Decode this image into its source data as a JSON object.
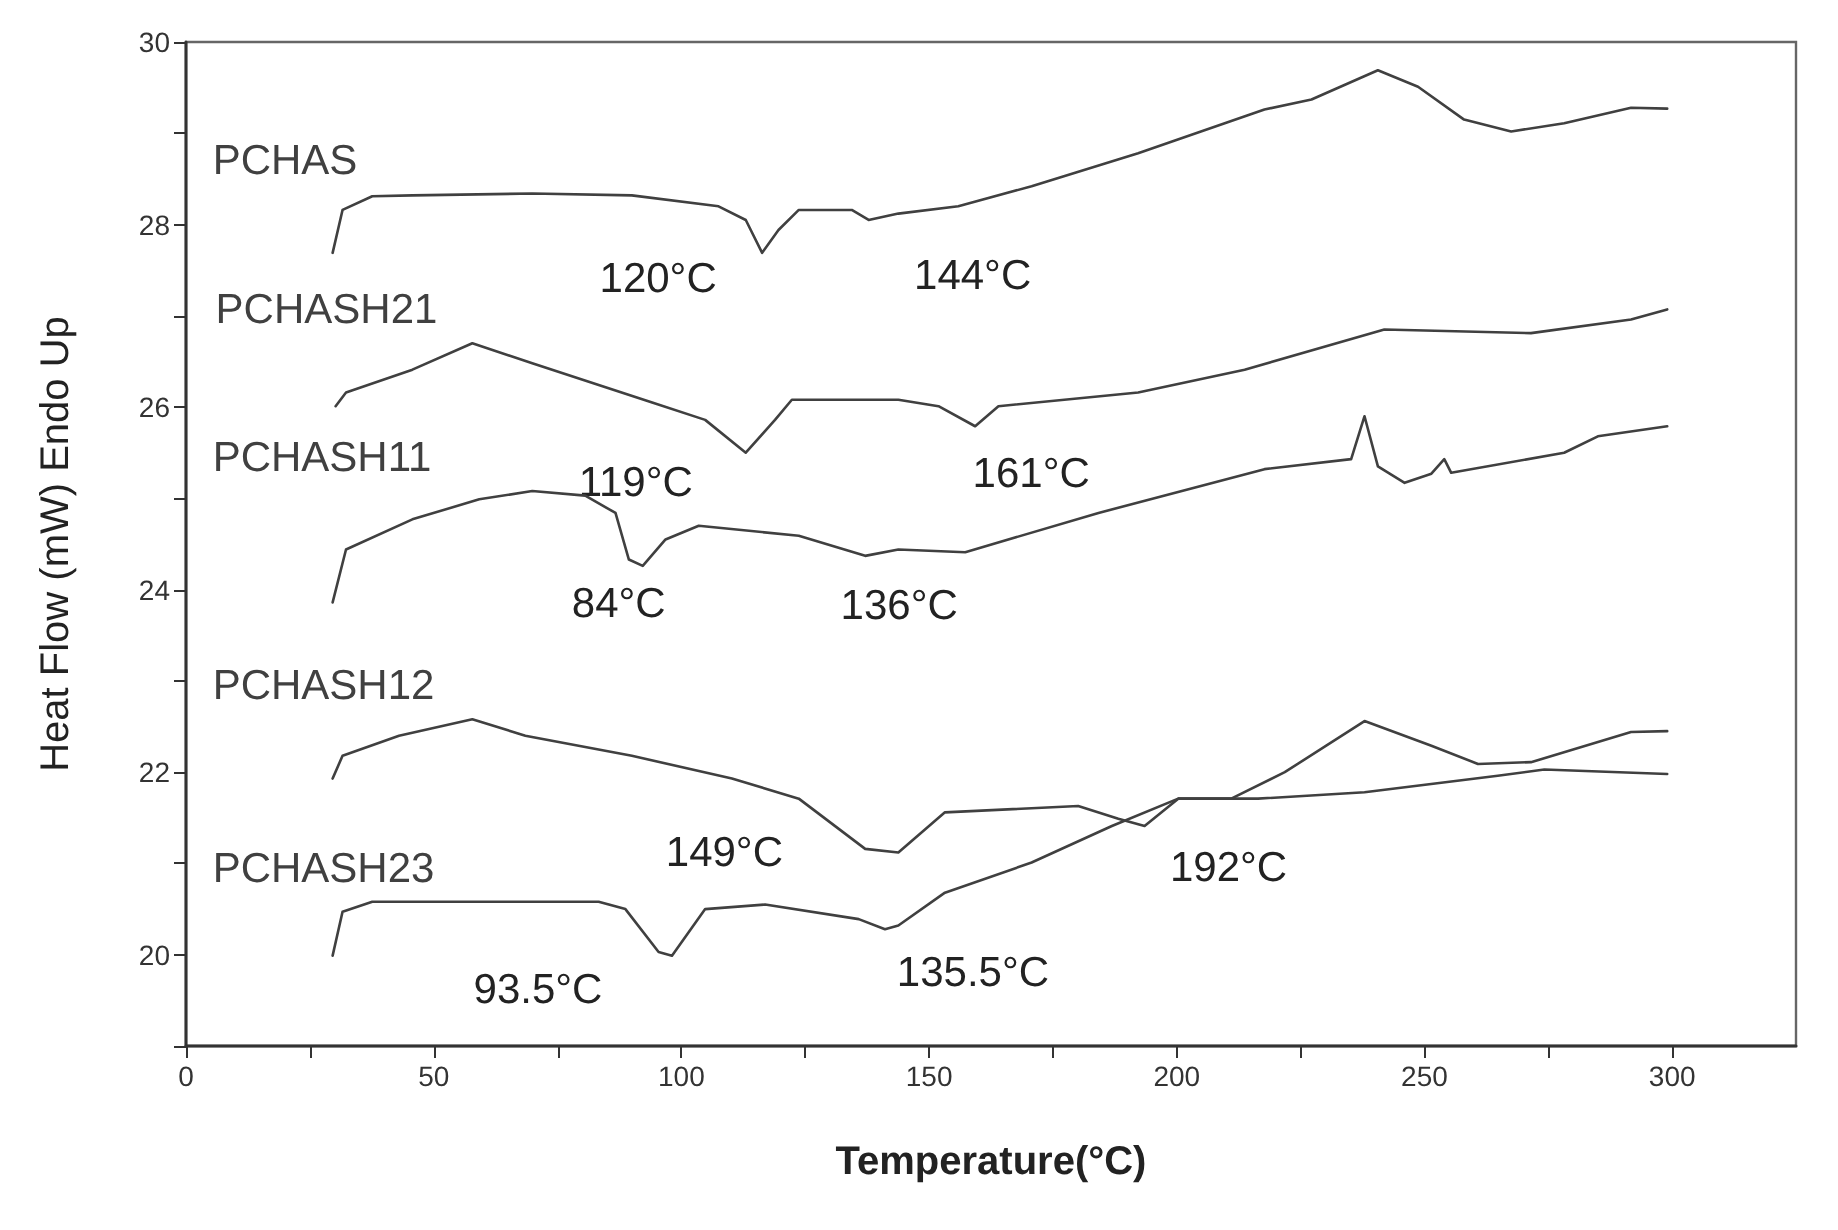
{
  "chart_data": {
    "type": "line",
    "xlabel": "Temperature(°C)",
    "ylabel": "Heat Flow (mW) Endo Up",
    "xlim": [
      0,
      325
    ],
    "ylim": [
      19,
      30
    ],
    "xticks": [
      0,
      {
        "value": 25,
        "label": null
      },
      50,
      {
        "value": 75,
        "label": null
      },
      100,
      {
        "value": 125,
        "label": null
      },
      150,
      {
        "value": 175,
        "label": null
      },
      200,
      {
        "value": 225,
        "label": null
      },
      250,
      {
        "value": 275,
        "label": null
      },
      300
    ],
    "yticks": [
      {
        "value": 19,
        "label": null
      },
      20,
      {
        "value": 21,
        "label": null
      },
      22,
      {
        "value": 23,
        "label": null
      },
      24,
      {
        "value": 25,
        "label": null
      },
      26,
      {
        "value": 27,
        "label": null
      },
      28,
      {
        "value": 29,
        "label": null
      },
      30
    ],
    "grid": false,
    "legend": false,
    "line_style": "solid",
    "series": [
      {
        "name": "PCHAS",
        "color": "#404040",
        "x": [
          29.6,
          31.6,
          37.6,
          45.7,
          69.9,
          90,
          107.5,
          113,
          116.3,
          119.6,
          123.7,
          134.4,
          137.8,
          143.8,
          155.9,
          170.7,
          192.2,
          217.7,
          227.2,
          240.6,
          248.7,
          258,
          267.5,
          278.2,
          291.7,
          299
        ],
        "values": [
          27.69,
          28.16,
          28.31,
          28.32,
          28.34,
          28.32,
          28.2,
          28.05,
          27.69,
          27.94,
          28.16,
          28.16,
          28.05,
          28.12,
          28.2,
          28.42,
          28.78,
          29.26,
          29.37,
          29.69,
          29.51,
          29.15,
          29.02,
          29.11,
          29.28,
          29.27
        ]
      },
      {
        "name": "PCHASH21",
        "color": "#404040",
        "x": [
          30.2,
          32.3,
          45.7,
          57.8,
          69.9,
          94.1,
          104.8,
          113,
          118.9,
          122.3,
          137,
          143.8,
          151.9,
          159.3,
          164,
          192.2,
          213.7,
          241.9,
          271.5,
          291.7,
          299
        ],
        "values": [
          26.01,
          26.16,
          26.41,
          26.7,
          26.48,
          26.05,
          25.86,
          25.5,
          25.86,
          26.08,
          26.08,
          26.08,
          26.01,
          25.79,
          26.01,
          26.16,
          26.41,
          26.85,
          26.81,
          26.96,
          27.07
        ]
      },
      {
        "name": "PCHASH11",
        "color": "#404040",
        "x": [
          29.6,
          32.3,
          45.7,
          59.2,
          69.9,
          80.6,
          86.7,
          89.4,
          92.2,
          96.8,
          103.5,
          123.7,
          137.1,
          143.8,
          157.3,
          184.2,
          217.7,
          235.2,
          237.9,
          240.6,
          246,
          251.4,
          254,
          255.4,
          278.2,
          285,
          299
        ],
        "values": [
          23.86,
          24.44,
          24.77,
          24.99,
          25.08,
          25.03,
          24.84,
          24.33,
          24.26,
          24.55,
          24.7,
          24.59,
          24.37,
          24.44,
          24.41,
          24.84,
          25.32,
          25.43,
          25.9,
          25.35,
          25.17,
          25.27,
          25.43,
          25.28,
          25.5,
          25.68,
          25.79
        ]
      },
      {
        "name": "PCHASH12",
        "color": "#404040",
        "x": [
          29.6,
          31.6,
          43,
          57.8,
          68.5,
          90,
          110.2,
          123.7,
          137.1,
          143.8,
          153.2,
          180.1,
          188.2,
          193.5,
          200.3,
          211,
          221.8,
          237.9,
          251.4,
          260.8,
          271.5,
          291.7,
          299
        ],
        "values": [
          21.93,
          22.18,
          22.4,
          22.58,
          22.4,
          22.18,
          21.93,
          21.71,
          21.16,
          21.12,
          21.56,
          21.63,
          21.49,
          21.41,
          21.71,
          21.71,
          22.0,
          22.56,
          22.29,
          22.09,
          22.11,
          22.44,
          22.45
        ]
      },
      {
        "name": "PCHASH23",
        "color": "#404040",
        "x": [
          29.6,
          31.6,
          37.6,
          83.3,
          88.7,
          95.4,
          98.1,
          104.8,
          116.9,
          135.8,
          141.1,
          143.8,
          153.2,
          170.7,
          186.9,
          200.3,
          216.4,
          237.9,
          264.8,
          274.2,
          299
        ],
        "values": [
          19.99,
          20.47,
          20.58,
          20.58,
          20.5,
          20.03,
          19.99,
          20.5,
          20.55,
          20.39,
          20.28,
          20.32,
          20.68,
          21.01,
          21.41,
          21.71,
          21.71,
          21.78,
          21.96,
          22.03,
          21.98
        ]
      }
    ],
    "annotations": [
      {
        "text": "120°C",
        "x": 116.3,
        "y": 27.69
      },
      {
        "text": "144°C",
        "x": 137.8,
        "y": 28.05
      },
      {
        "text": "119°C",
        "x": 113,
        "y": 25.5
      },
      {
        "text": "161°C",
        "x": 159.3,
        "y": 25.79
      },
      {
        "text": "84°C",
        "x": 92.2,
        "y": 24.26
      },
      {
        "text": "136°C",
        "x": 137.1,
        "y": 24.37
      },
      {
        "text": "149°C",
        "x": 143.8,
        "y": 21.12
      },
      {
        "text": "192°C",
        "x": 193.5,
        "y": 21.41
      },
      {
        "text": "93.5°C",
        "x": 98.1,
        "y": 19.99
      },
      {
        "text": "135.5°C",
        "x": 141.1,
        "y": 20.28
      }
    ]
  }
}
